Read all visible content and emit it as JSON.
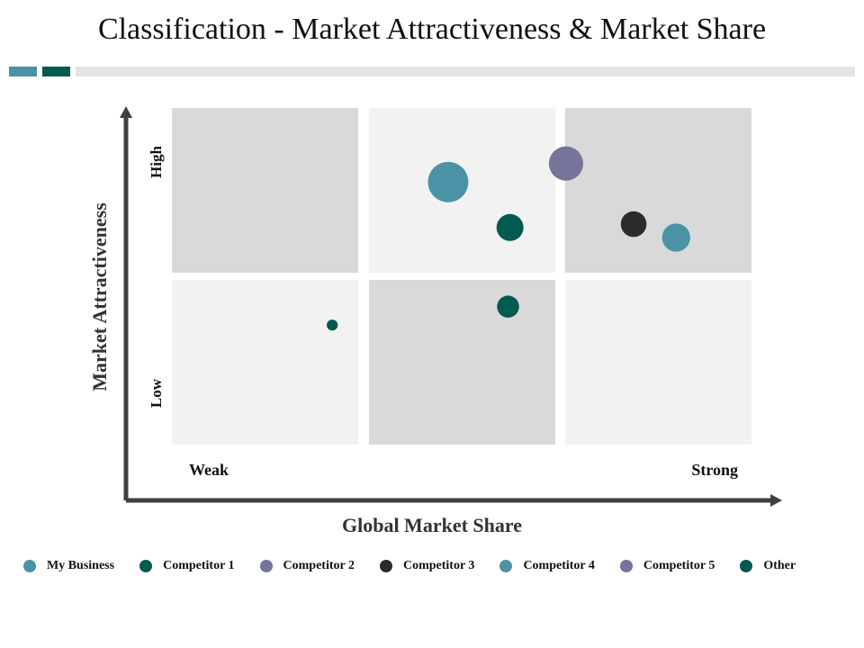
{
  "title": "Classification - Market Attractiveness & Market Share",
  "colors": {
    "accent_teal": "#4a93a6",
    "accent_green": "#035a50",
    "cell_dark": "#d9d9d9",
    "cell_light": "#f2f2f2",
    "axis": "#404040"
  },
  "chart_data": {
    "type": "scatter",
    "subtype": "bubble-matrix",
    "xlabel": "Global Market Share",
    "ylabel": "Market Attractiveness",
    "x_tick_labels": [
      "Weak",
      "Strong"
    ],
    "y_tick_labels": [
      "High",
      "Low"
    ],
    "xlim": [
      0,
      3
    ],
    "ylim": [
      0,
      2
    ],
    "grid": {
      "columns": 3,
      "rows": 2,
      "shading_top_row": [
        "dark",
        "light",
        "dark"
      ],
      "shading_bottom_row": [
        "light",
        "dark",
        "light"
      ]
    },
    "legend_position": "bottom",
    "series": [
      {
        "name": "My Business",
        "color": "#4a93a6",
        "points": [
          {
            "x": 1.43,
            "y": 1.56,
            "size": 3.3
          }
        ]
      },
      {
        "name": "Competitor 1",
        "color": "#035a50",
        "points": [
          {
            "x": 1.75,
            "y": 1.29,
            "size": 2.2
          }
        ]
      },
      {
        "name": "Competitor 2",
        "color": "#75759b",
        "points": [
          {
            "x": 2.04,
            "y": 1.67,
            "size": 2.8
          }
        ]
      },
      {
        "name": "Competitor 3",
        "color": "#2b2b2b",
        "points": [
          {
            "x": 2.39,
            "y": 1.31,
            "size": 2.1
          }
        ]
      },
      {
        "name": "Competitor 4",
        "color": "#4a93a6",
        "points": [
          {
            "x": 2.61,
            "y": 1.23,
            "size": 2.3
          }
        ]
      },
      {
        "name": "Competitor 5",
        "color": "#75759b",
        "points": []
      },
      {
        "name": "Other",
        "color": "#035a50",
        "points": [
          {
            "x": 0.83,
            "y": 0.71,
            "size": 0.9
          },
          {
            "x": 1.74,
            "y": 0.82,
            "size": 1.8
          }
        ]
      }
    ]
  }
}
